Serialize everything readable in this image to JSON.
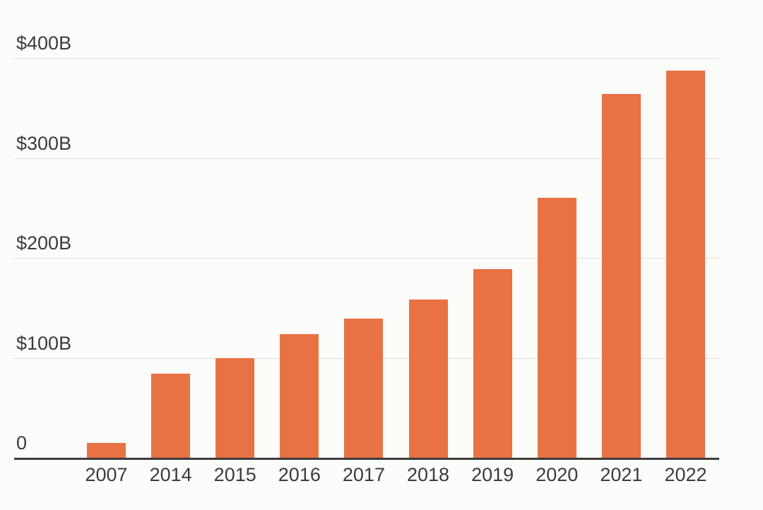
{
  "chart_data": {
    "type": "bar",
    "title": "",
    "xlabel": "",
    "ylabel": "",
    "categories": [
      "2007",
      "2014",
      "2015",
      "2016",
      "2017",
      "2018",
      "2019",
      "2020",
      "2021",
      "2022"
    ],
    "values": [
      15,
      84,
      100,
      124,
      139,
      158,
      189,
      260,
      364,
      387
    ],
    "ylim": [
      0,
      400
    ],
    "grid": true,
    "legend_position": "none",
    "y_ticks": [
      {
        "value": 400,
        "label": "$400B"
      },
      {
        "value": 300,
        "label": "$300B"
      },
      {
        "value": 200,
        "label": "$200B"
      },
      {
        "value": 100,
        "label": "$100B"
      },
      {
        "value": 0,
        "label": "0"
      }
    ],
    "colors": {
      "bar": "#E97245",
      "gridline": "#DEDEDE",
      "axis_line": "#3D3D3D",
      "label_text": "#3B3B3B",
      "background": "#FCFCFA"
    }
  }
}
